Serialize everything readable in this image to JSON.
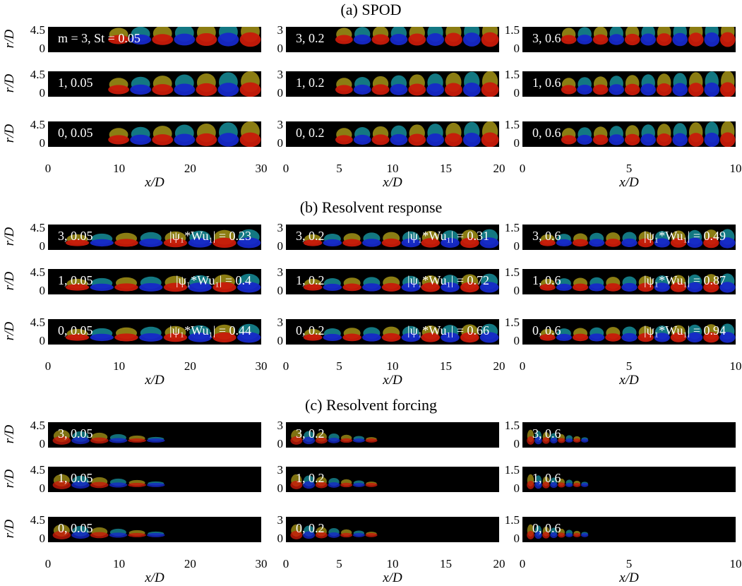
{
  "sections": [
    {
      "title": "(a) SPOD",
      "rows": [
        {
          "panels": [
            {
              "label": "m = 3, St = 0.05",
              "metric": ""
            },
            {
              "label": "3, 0.2",
              "metric": ""
            },
            {
              "label": "3, 0.6",
              "metric": ""
            }
          ]
        },
        {
          "panels": [
            {
              "label": "1, 0.05",
              "metric": ""
            },
            {
              "label": "1, 0.2",
              "metric": ""
            },
            {
              "label": "1, 0.6",
              "metric": ""
            }
          ]
        },
        {
          "panels": [
            {
              "label": "0, 0.05",
              "metric": ""
            },
            {
              "label": "0, 0.2",
              "metric": ""
            },
            {
              "label": "0, 0.6",
              "metric": ""
            }
          ]
        }
      ]
    },
    {
      "title": "(b) Resolvent response",
      "rows": [
        {
          "panels": [
            {
              "label": "3, 0.05",
              "metric": "|ψ₁*Wu₁| = 0.23"
            },
            {
              "label": "3, 0.2",
              "metric": "|ψ₁*Wu₁| = 0.31"
            },
            {
              "label": "3, 0.6",
              "metric": "|ψ₁*Wu₁| = 0.49"
            }
          ]
        },
        {
          "panels": [
            {
              "label": "1, 0.05",
              "metric": "|ψ₁*Wu₁| = 0.4"
            },
            {
              "label": "1, 0.2",
              "metric": "|ψ₁*Wu₁| = 0.72"
            },
            {
              "label": "1, 0.6",
              "metric": "|ψ₁*Wu₁| = 0.87"
            }
          ]
        },
        {
          "panels": [
            {
              "label": "0, 0.05",
              "metric": "|ψ₁*Wu₁| = 0.44"
            },
            {
              "label": "0, 0.2",
              "metric": "|ψ₁*Wu₁| = 0.66"
            },
            {
              "label": "0, 0.6",
              "metric": "|ψ₁*Wu₁| = 0.94"
            }
          ]
        }
      ]
    },
    {
      "title": "(c) Resolvent forcing",
      "rows": [
        {
          "panels": [
            {
              "label": "3, 0.05",
              "metric": ""
            },
            {
              "label": "3, 0.2",
              "metric": ""
            },
            {
              "label": "3, 0.6",
              "metric": ""
            }
          ]
        },
        {
          "panels": [
            {
              "label": "1, 0.05",
              "metric": ""
            },
            {
              "label": "1, 0.2",
              "metric": ""
            },
            {
              "label": "1, 0.6",
              "metric": ""
            }
          ]
        },
        {
          "panels": [
            {
              "label": "0, 0.05",
              "metric": ""
            },
            {
              "label": "0, 0.2",
              "metric": ""
            },
            {
              "label": "0, 0.6",
              "metric": ""
            }
          ]
        }
      ]
    }
  ],
  "columns": [
    {
      "ymax_label": "4.5",
      "ymin_label": "0",
      "xticks": [
        "0",
        "10",
        "20",
        "30"
      ]
    },
    {
      "ymax_label": "3",
      "ymin_label": "0",
      "xticks": [
        "0",
        "5",
        "10",
        "15",
        "20"
      ]
    },
    {
      "ymax_label": "1.5",
      "ymin_label": "0",
      "xticks": [
        "0",
        "5",
        "10"
      ]
    }
  ],
  "axis_labels": {
    "y": "r/D",
    "x": "x/D"
  },
  "colors": {
    "background": "#000000",
    "red": "#c81a0a",
    "blue": "#1628c8",
    "yellow": "#e8d020",
    "cyan": "#20c8d8"
  }
}
